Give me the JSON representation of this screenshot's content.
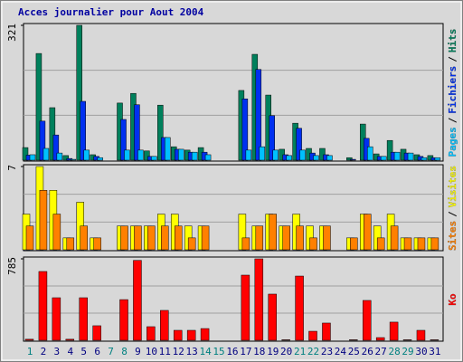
{
  "title": "Acces journalier pour Aout 2004",
  "legend_separator": "/",
  "chart_data": [
    {
      "type": "bar",
      "ylim": [
        0,
        321
      ],
      "yticks": [
        321
      ],
      "series": [
        {
          "name": "Hits",
          "color": "#00805c",
          "values": [
            30,
            254,
            125,
            11,
            321,
            13,
            0,
            136,
            159,
            22,
            131,
            32,
            24,
            30,
            0,
            0,
            166,
            252,
            155,
            26,
            88,
            28,
            28,
            0,
            6,
            86,
            15,
            47,
            26,
            13,
            11
          ]
        },
        {
          "name": "Fichiers",
          "color": "#0030f0",
          "values": [
            12,
            93,
            60,
            4,
            140,
            9,
            0,
            97,
            132,
            9,
            54,
            26,
            19,
            19,
            0,
            0,
            146,
            216,
            106,
            13,
            76,
            17,
            13,
            0,
            2,
            52,
            9,
            19,
            17,
            9,
            6
          ]
        },
        {
          "name": "Pages",
          "color": "#00c0ff",
          "values": [
            13,
            28,
            17,
            2,
            24,
            6,
            0,
            24,
            24,
            9,
            54,
            26,
            19,
            13,
            0,
            0,
            24,
            32,
            24,
            11,
            24,
            11,
            11,
            0,
            0,
            32,
            9,
            19,
            17,
            6,
            6
          ]
        }
      ]
    },
    {
      "type": "bar",
      "ylim": [
        0,
        7
      ],
      "yticks": [
        7
      ],
      "series": [
        {
          "name": "Visites",
          "color": "#ffff00",
          "values": [
            3,
            7,
            5,
            1,
            4,
            1,
            0,
            2,
            2,
            2,
            3,
            3,
            2,
            2,
            0,
            0,
            3,
            2,
            3,
            2,
            3,
            2,
            2,
            0,
            1,
            3,
            2,
            3,
            1,
            1,
            1
          ]
        },
        {
          "name": "Sites",
          "color": "#ff8000",
          "values": [
            2,
            5,
            3,
            1,
            2,
            1,
            0,
            2,
            2,
            2,
            2,
            2,
            1,
            2,
            0,
            0,
            1,
            2,
            3,
            2,
            2,
            1,
            2,
            0,
            1,
            3,
            1,
            2,
            1,
            1,
            1
          ]
        }
      ]
    },
    {
      "type": "bar",
      "ylim": [
        0,
        785
      ],
      "yticks": [
        785
      ],
      "categories": [
        "1",
        "2",
        "3",
        "4",
        "5",
        "6",
        "7",
        "8",
        "9",
        "10",
        "11",
        "12",
        "13",
        "14",
        "15",
        "16",
        "17",
        "18",
        "19",
        "20",
        "21",
        "22",
        "23",
        "24",
        "25",
        "26",
        "27",
        "28",
        "29",
        "30",
        "31"
      ],
      "label_colors": [
        "#008080",
        "#000080",
        "#000080",
        "#000080",
        "#000080",
        "#000080",
        "#008080",
        "#008080",
        "#000080",
        "#000080",
        "#000080",
        "#000080",
        "#000080",
        "#008080",
        "#008080",
        "#000080",
        "#000080",
        "#000080",
        "#000080",
        "#000080",
        "#008080",
        "#008080",
        "#000080",
        "#000080",
        "#000080",
        "#000080",
        "#000080",
        "#008080",
        "#008080",
        "#000080",
        "#000080"
      ],
      "series": [
        {
          "name": "Ko",
          "color": "#ff0000",
          "values": [
            10,
            663,
            410,
            10,
            410,
            140,
            0,
            392,
            770,
            131,
            288,
            96,
            96,
            113,
            0,
            0,
            628,
            785,
            445,
            5,
            619,
            87,
            166,
            0,
            5,
            384,
            26,
            175,
            5,
            96,
            5
          ]
        }
      ]
    }
  ]
}
